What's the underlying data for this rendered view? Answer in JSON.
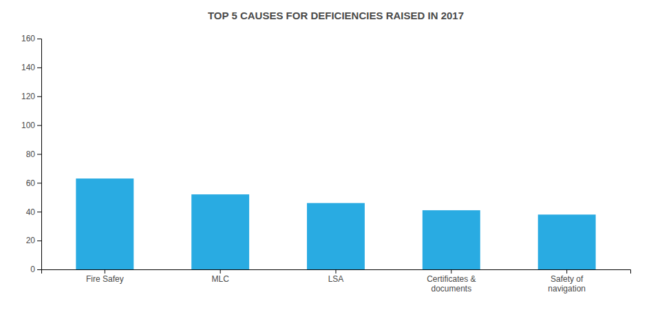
{
  "chart_data": {
    "type": "bar",
    "title": "TOP 5 CAUSES FOR DEFICIENCIES RAISED IN 2017",
    "categories": [
      "Fire Safey",
      "MLC",
      "LSA",
      "Certificates &\ndocuments",
      "Safety of\nnavigation"
    ],
    "values": [
      63,
      52,
      46,
      41,
      38
    ],
    "color": "#29ABE2",
    "ylim": [
      0,
      160
    ],
    "yticks": [
      0,
      20,
      40,
      60,
      80,
      100,
      120,
      140,
      160
    ],
    "grid": false
  }
}
